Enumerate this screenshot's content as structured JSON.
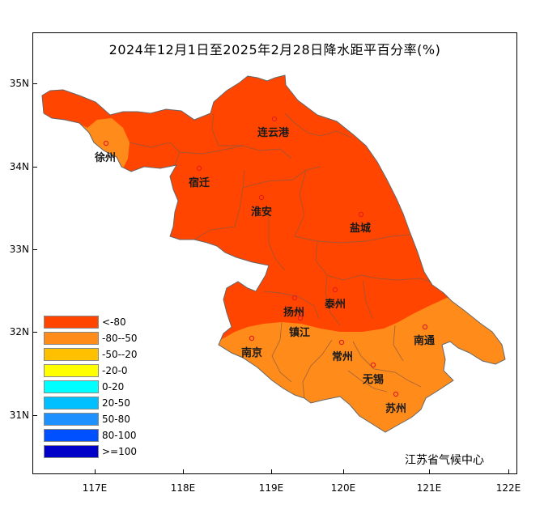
{
  "title": "2024年12月1日至2025年2月28日降水距平百分率(%)",
  "credit": "江苏省气候中心",
  "axes": {
    "x_ticks": [
      "117E",
      "118E",
      "119E",
      "120E",
      "121E",
      "122E"
    ],
    "y_ticks": [
      "35N",
      "34N",
      "33N",
      "32N",
      "31N"
    ]
  },
  "legend": [
    {
      "label": "<-80",
      "color": "#ff4500"
    },
    {
      "label": "-80--50",
      "color": "#ff8c1a"
    },
    {
      "label": "-50--20",
      "color": "#ffc000"
    },
    {
      "label": "-20-0",
      "color": "#ffff00"
    },
    {
      "label": "0-20",
      "color": "#00ffff"
    },
    {
      "label": "20-50",
      "color": "#00c0ff"
    },
    {
      "label": "50-80",
      "color": "#1e90ff"
    },
    {
      "label": "80-100",
      "color": "#0050ff"
    },
    {
      "label": ">=100",
      "color": "#0000c8"
    }
  ],
  "cities": [
    {
      "name": "连云港",
      "category": "<-80"
    },
    {
      "name": "徐州",
      "category": "-80--50"
    },
    {
      "name": "宿迁",
      "category": "<-80"
    },
    {
      "name": "淮安",
      "category": "<-80"
    },
    {
      "name": "盐城",
      "category": "<-80"
    },
    {
      "name": "扬州",
      "category": "<-80"
    },
    {
      "name": "泰州",
      "category": "<-80"
    },
    {
      "name": "镇江",
      "category": "<-80"
    },
    {
      "name": "南京",
      "category": "-80--50"
    },
    {
      "name": "常州",
      "category": "-80--50"
    },
    {
      "name": "南通",
      "category": "-80--50"
    },
    {
      "name": "无锡",
      "category": "-80--50"
    },
    {
      "name": "苏州",
      "category": "-80--50"
    }
  ]
}
